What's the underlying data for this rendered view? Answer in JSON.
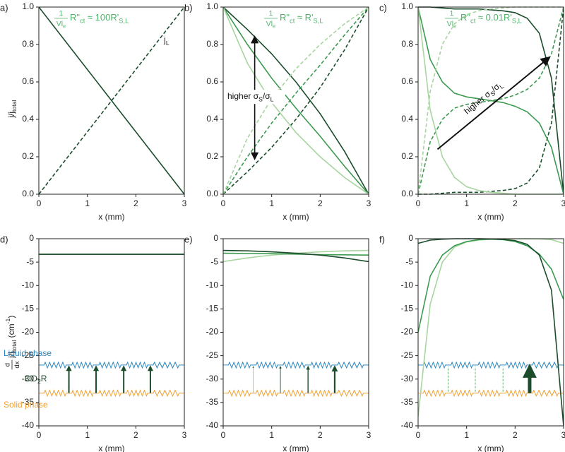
{
  "chart_data": [
    {
      "type": "line",
      "panel_label": "a)",
      "annotation": {
        "fraction": {
          "num": [
            {
              "text": "1"
            }
          ],
          "den": [
            {
              "text": "Vl"
            },
            {
              "text": "e",
              "shift": "sub"
            }
          ]
        },
        "rest": [
          {
            "text": "R\""
          },
          {
            "text": "ct",
            "shift": "sub"
          },
          {
            "text": " ≈ 100R'"
          },
          {
            "text": "S,L",
            "shift": "sub"
          }
        ]
      },
      "line_label": {
        "rest": [
          {
            "text": "j"
          },
          {
            "text": "L",
            "shift": "sub"
          }
        ]
      },
      "xlabel": "x (mm)",
      "ylabel": {
        "rest": [
          {
            "text": "j/j"
          },
          {
            "text": "total",
            "shift": "sub"
          }
        ]
      },
      "x": [
        0,
        3
      ],
      "series": [
        {
          "color": "#1b4d2c",
          "dashed": false,
          "values": [
            1,
            0
          ]
        },
        {
          "color": "#1b4d2c",
          "dashed": true,
          "values": [
            0,
            1
          ]
        }
      ],
      "xlim": [
        0,
        3
      ],
      "xticks": [
        0,
        1,
        2,
        3
      ],
      "ylim": [
        0,
        1
      ],
      "yticks": [
        {
          "value": 0,
          "label": "0.0"
        },
        0.2,
        0.4,
        0.6,
        0.8,
        {
          "value": 1,
          "label": "1.0"
        }
      ]
    },
    {
      "type": "line",
      "panel_label": "b)",
      "annotation": {
        "fraction": {
          "num": [
            {
              "text": "1"
            }
          ],
          "den": [
            {
              "text": "Vl"
            },
            {
              "text": "e",
              "shift": "sub"
            }
          ]
        },
        "rest": [
          {
            "text": "R\""
          },
          {
            "text": "ct",
            "shift": "sub"
          },
          {
            "text": " ≈ R'"
          },
          {
            "text": "S,L",
            "shift": "sub"
          }
        ]
      },
      "arrow_label": {
        "rest": [
          {
            "text": "higher σ"
          },
          {
            "text": "S",
            "shift": "sub"
          },
          {
            "text": "/σ"
          },
          {
            "text": "L",
            "shift": "sub"
          }
        ]
      },
      "xlabel": "x (mm)",
      "x": [
        0,
        0.5,
        1,
        1.5,
        2,
        2.5,
        3
      ],
      "series": [
        {
          "color": "#1b4d2c",
          "dashed": false,
          "values": [
            1,
            0.88,
            0.75,
            0.6,
            0.43,
            0.23,
            0
          ]
        },
        {
          "color": "#1b4d2c",
          "dashed": true,
          "values": [
            0,
            0.12,
            0.25,
            0.4,
            0.57,
            0.77,
            1
          ]
        },
        {
          "color": "#3c9a50",
          "dashed": false,
          "values": [
            1,
            0.8,
            0.62,
            0.46,
            0.31,
            0.15,
            0
          ]
        },
        {
          "color": "#3c9a50",
          "dashed": true,
          "values": [
            0,
            0.2,
            0.38,
            0.54,
            0.69,
            0.85,
            1
          ]
        },
        {
          "color": "#a8d5a0",
          "dashed": false,
          "values": [
            1,
            0.7,
            0.49,
            0.33,
            0.2,
            0.09,
            0
          ]
        },
        {
          "color": "#a8d5a0",
          "dashed": true,
          "values": [
            0,
            0.3,
            0.51,
            0.67,
            0.8,
            0.91,
            1
          ]
        }
      ],
      "xlim": [
        0,
        3
      ],
      "xticks": [
        0,
        1,
        2,
        3
      ],
      "ylim": [
        0,
        1
      ],
      "yticks": [
        {
          "value": 0,
          "label": "0.0"
        },
        0.2,
        0.4,
        0.6,
        0.8,
        {
          "value": 1,
          "label": "1.0"
        }
      ]
    },
    {
      "type": "line",
      "panel_label": "c)",
      "annotation": {
        "fraction": {
          "num": [
            {
              "text": "1"
            }
          ],
          "den": [
            {
              "text": "Vl"
            },
            {
              "text": "e",
              "shift": "sub"
            }
          ]
        },
        "rest": [
          {
            "text": "R\""
          },
          {
            "text": "ct",
            "shift": "sub"
          },
          {
            "text": " ≈ 0.01R'"
          },
          {
            "text": "S,L",
            "shift": "sub"
          }
        ]
      },
      "arrow_label": {
        "rest": [
          {
            "text": "higher σ"
          },
          {
            "text": "S",
            "shift": "sub"
          },
          {
            "text": "/σ"
          },
          {
            "text": "L",
            "shift": "sub"
          }
        ]
      },
      "xlabel": "x (mm)",
      "x": [
        0,
        0.25,
        0.5,
        0.75,
        1,
        1.25,
        1.5,
        1.75,
        2,
        2.25,
        2.5,
        2.75,
        3
      ],
      "series": [
        {
          "color": "#1b4d2c",
          "dashed": false,
          "values": [
            1,
            1,
            0.995,
            0.99,
            0.99,
            0.99,
            0.985,
            0.98,
            0.97,
            0.94,
            0.86,
            0.62,
            0
          ]
        },
        {
          "color": "#1b4d2c",
          "dashed": true,
          "values": [
            0,
            0,
            0.005,
            0.01,
            0.01,
            0.01,
            0.015,
            0.02,
            0.03,
            0.06,
            0.14,
            0.38,
            1
          ]
        },
        {
          "color": "#3c9a50",
          "dashed": false,
          "values": [
            1,
            0.72,
            0.6,
            0.54,
            0.52,
            0.51,
            0.5,
            0.49,
            0.47,
            0.44,
            0.38,
            0.25,
            0
          ]
        },
        {
          "color": "#3c9a50",
          "dashed": true,
          "values": [
            0,
            0.28,
            0.4,
            0.46,
            0.48,
            0.49,
            0.5,
            0.51,
            0.53,
            0.56,
            0.62,
            0.75,
            1
          ]
        },
        {
          "color": "#a8d5a0",
          "dashed": false,
          "values": [
            1,
            0.45,
            0.2,
            0.09,
            0.04,
            0.02,
            0.01,
            0.005,
            0,
            0,
            0,
            0,
            0
          ]
        },
        {
          "color": "#a8d5a0",
          "dashed": true,
          "values": [
            0,
            0.55,
            0.8,
            0.91,
            0.96,
            0.98,
            0.99,
            0.995,
            1,
            1,
            1,
            1,
            1
          ]
        }
      ],
      "xlim": [
        0,
        3
      ],
      "xticks": [
        0,
        1,
        2,
        3
      ],
      "ylim": [
        0,
        1
      ],
      "yticks": [
        {
          "value": 0,
          "label": "0.0"
        },
        0.2,
        0.4,
        0.6,
        0.8,
        {
          "value": 1,
          "label": "1.0"
        }
      ]
    },
    {
      "type": "line",
      "panel_label": "d)",
      "xlabel": "x (mm)",
      "ylabel": {
        "fraction": {
          "num": [
            {
              "text": "d"
            }
          ],
          "den": [
            {
              "text": "dx"
            }
          ]
        },
        "rest": [
          {
            "text": "j/j"
          },
          {
            "text": "total",
            "shift": "sub"
          },
          {
            "text": " (cm"
          },
          {
            "text": "-1",
            "shift": "sup"
          },
          {
            "text": ")"
          }
        ]
      },
      "diagram": {
        "liquid": "Liquid phase",
        "reaction": {
          "rest": [
            {
              "text": "CO"
            },
            {
              "text": "2",
              "shift": "sub"
            },
            {
              "text": "R"
            }
          ]
        },
        "solid": "Solid phase"
      },
      "x": [
        0,
        3
      ],
      "series": [
        {
          "color": "#a8d5a0",
          "dashed": false,
          "values": [
            -3.33,
            -3.33
          ]
        },
        {
          "color": "#3c9a50",
          "dashed": false,
          "values": [
            -3.33,
            -3.33
          ]
        },
        {
          "color": "#1b4d2c",
          "dashed": false,
          "values": [
            -3.33,
            -3.33
          ]
        }
      ],
      "xlim": [
        0,
        3
      ],
      "xticks": [
        0,
        1,
        2,
        3
      ],
      "ylim": [
        -40,
        0
      ],
      "yticks": [
        -40,
        -35,
        -30,
        -25,
        -20,
        -15,
        -10,
        -5,
        0
      ]
    },
    {
      "type": "line",
      "panel_label": "e)",
      "xlabel": "x (mm)",
      "x": [
        0,
        0.5,
        1,
        1.5,
        2,
        2.5,
        3
      ],
      "series": [
        {
          "color": "#a8d5a0",
          "dashed": false,
          "values": [
            -4.9,
            -4.1,
            -3.5,
            -3.1,
            -2.8,
            -2.6,
            -2.5
          ]
        },
        {
          "color": "#3c9a50",
          "dashed": false,
          "values": [
            -3.1,
            -3.15,
            -3.2,
            -3.3,
            -3.4,
            -3.45,
            -3.5
          ]
        },
        {
          "color": "#1b4d2c",
          "dashed": false,
          "values": [
            -2.5,
            -2.6,
            -2.8,
            -3.1,
            -3.5,
            -4.1,
            -4.9
          ]
        }
      ],
      "xlim": [
        0,
        3
      ],
      "xticks": [
        0,
        1,
        2,
        3
      ],
      "ylim": [
        -40,
        0
      ],
      "yticks": [
        -40,
        -35,
        -30,
        -25,
        -20,
        -15,
        -10,
        -5,
        0
      ]
    },
    {
      "type": "line",
      "panel_label": "f)",
      "xlabel": "x (mm)",
      "x": [
        0,
        0.25,
        0.5,
        0.75,
        1,
        1.25,
        1.5,
        1.75,
        2,
        2.25,
        2.5,
        2.75,
        3
      ],
      "series": [
        {
          "color": "#a8d5a0",
          "dashed": false,
          "values": [
            -38,
            -14,
            -5,
            -1.8,
            -0.7,
            -0.3,
            -0.1,
            -0.05,
            -0.02,
            0,
            -0.05,
            -0.2,
            -1
          ]
        },
        {
          "color": "#3c9a50",
          "dashed": false,
          "values": [
            -20,
            -8,
            -3.5,
            -1.5,
            -0.6,
            -0.2,
            -0.1,
            -0.2,
            -0.6,
            -1.5,
            -3.3,
            -6.5,
            -13
          ]
        },
        {
          "color": "#1b4d2c",
          "dashed": false,
          "values": [
            -1,
            -0.3,
            -0.1,
            0,
            0,
            0,
            -0.05,
            -0.15,
            -0.4,
            -1.2,
            -3.5,
            -11,
            -40
          ]
        }
      ],
      "xlim": [
        0,
        3
      ],
      "xticks": [
        0,
        1,
        2,
        3
      ],
      "ylim": [
        -40,
        0
      ],
      "yticks": [
        -40,
        -35,
        -30,
        -25,
        -20,
        -15,
        -10,
        -5,
        0
      ]
    }
  ]
}
